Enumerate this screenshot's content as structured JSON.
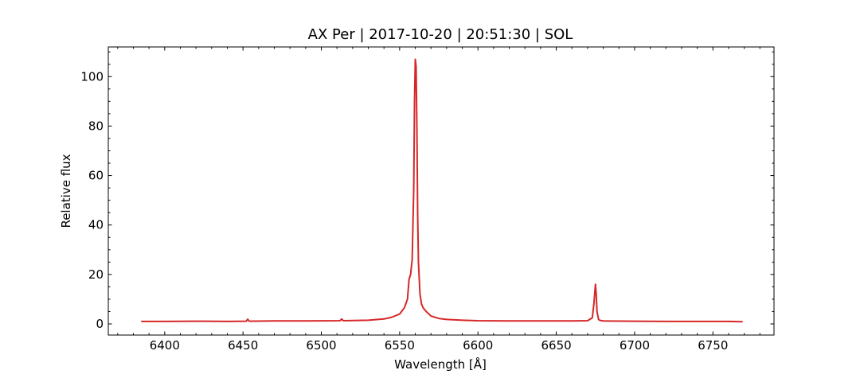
{
  "chart_data": {
    "type": "line",
    "title": "AX Per | 2017-10-20 | 20:51:30 | SOL",
    "xlabel": "Wavelength [Å]",
    "ylabel": "Relative flux",
    "xlim": [
      6364,
      6789
    ],
    "ylim": [
      -4.5,
      112
    ],
    "xticks": [
      6400,
      6450,
      6500,
      6550,
      6600,
      6650,
      6700,
      6750
    ],
    "yticks": [
      0,
      20,
      40,
      60,
      80,
      100
    ],
    "x_minor_step": 10,
    "y_minor_step": 5,
    "grid": false,
    "line_color": "#d62728",
    "series": [
      {
        "x": [
          6385,
          6400,
          6420,
          6440,
          6452,
          6453,
          6454,
          6470,
          6490,
          6512,
          6513,
          6514,
          6530,
          6540,
          6545,
          6550,
          6553,
          6555,
          6556,
          6557,
          6558,
          6559,
          6559.5,
          6560,
          6560.5,
          6561,
          6561.5,
          6562,
          6563,
          6564,
          6565,
          6567,
          6570,
          6575,
          6580,
          6590,
          6600,
          6620,
          6640,
          6660,
          6670,
          6673,
          6674,
          6675,
          6675.5,
          6676,
          6677,
          6678,
          6680,
          6700,
          6720,
          6740,
          6760,
          6769
        ],
        "y": [
          1.0,
          1.0,
          1.1,
          1.0,
          1.1,
          1.9,
          1.1,
          1.2,
          1.2,
          1.3,
          2.0,
          1.3,
          1.5,
          2.0,
          2.7,
          4.0,
          6.5,
          10.0,
          18.0,
          20.0,
          26.0,
          55.0,
          90.0,
          107.0,
          104.0,
          80.0,
          45.0,
          25.0,
          12.0,
          8.0,
          6.5,
          5.0,
          3.2,
          2.2,
          1.8,
          1.5,
          1.3,
          1.2,
          1.2,
          1.2,
          1.3,
          2.5,
          8.0,
          16.0,
          12.0,
          5.0,
          1.8,
          1.4,
          1.2,
          1.1,
          1.0,
          1.0,
          1.0,
          0.9
        ]
      }
    ]
  }
}
